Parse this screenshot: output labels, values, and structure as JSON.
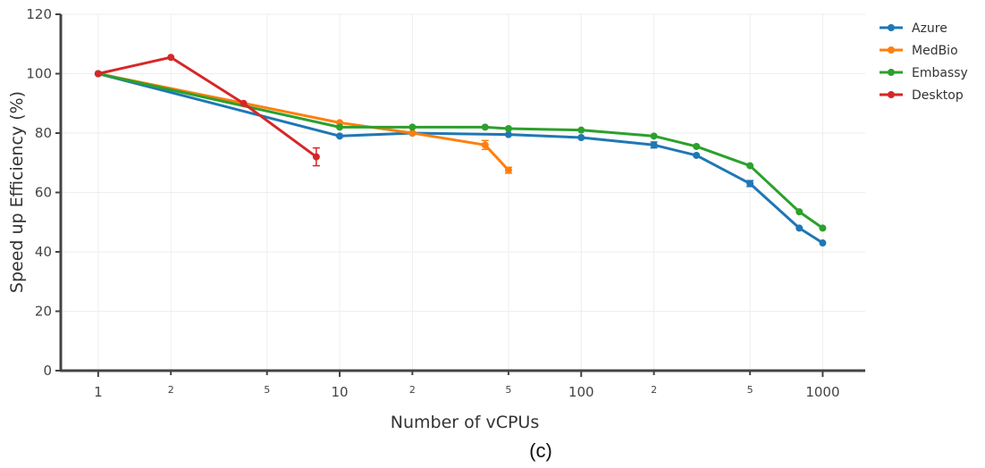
{
  "chart_data": {
    "type": "line",
    "title": "",
    "xlabel": "Number of vCPUs",
    "ylabel": "Speed up Efficiency (%)",
    "caption": "(c)",
    "x_scale": "log",
    "xlim": [
      0.7,
      1500
    ],
    "ylim": [
      0,
      120
    ],
    "y_ticks": [
      0,
      20,
      40,
      60,
      80,
      100,
      120
    ],
    "x_ticks_major": [
      {
        "value": 1,
        "label": "1"
      },
      {
        "value": 10,
        "label": "10"
      },
      {
        "value": 100,
        "label": "100"
      },
      {
        "value": 1000,
        "label": "1000"
      }
    ],
    "x_ticks_minor": [
      {
        "value": 2,
        "label": "2"
      },
      {
        "value": 5,
        "label": "5"
      },
      {
        "value": 20,
        "label": "2"
      },
      {
        "value": 50,
        "label": "5"
      },
      {
        "value": 200,
        "label": "2"
      },
      {
        "value": 500,
        "label": "5"
      }
    ],
    "grid": true,
    "legend_position": "top-right",
    "series": [
      {
        "name": "Azure",
        "color": "#1f77b4",
        "points": [
          {
            "x": 1,
            "y": 100
          },
          {
            "x": 10,
            "y": 79
          },
          {
            "x": 20,
            "y": 80
          },
          {
            "x": 50,
            "y": 79.5
          },
          {
            "x": 100,
            "y": 78.5
          },
          {
            "x": 200,
            "y": 76,
            "err": 1
          },
          {
            "x": 300,
            "y": 72.5
          },
          {
            "x": 500,
            "y": 63,
            "err": 1
          },
          {
            "x": 800,
            "y": 48
          },
          {
            "x": 1000,
            "y": 43
          }
        ]
      },
      {
        "name": "MedBio",
        "color": "#ff7f0e",
        "points": [
          {
            "x": 1,
            "y": 100
          },
          {
            "x": 10,
            "y": 83.5
          },
          {
            "x": 20,
            "y": 80
          },
          {
            "x": 40,
            "y": 76,
            "err": 1.5
          },
          {
            "x": 50,
            "y": 67.5,
            "err": 1
          }
        ]
      },
      {
        "name": "Embassy",
        "color": "#2ca02c",
        "points": [
          {
            "x": 1,
            "y": 100
          },
          {
            "x": 10,
            "y": 82
          },
          {
            "x": 20,
            "y": 82
          },
          {
            "x": 40,
            "y": 82
          },
          {
            "x": 50,
            "y": 81.5
          },
          {
            "x": 100,
            "y": 81
          },
          {
            "x": 200,
            "y": 79
          },
          {
            "x": 300,
            "y": 75.5
          },
          {
            "x": 500,
            "y": 69
          },
          {
            "x": 800,
            "y": 53.5
          },
          {
            "x": 1000,
            "y": 48
          }
        ]
      },
      {
        "name": "Desktop",
        "color": "#d62728",
        "points": [
          {
            "x": 1,
            "y": 100
          },
          {
            "x": 2,
            "y": 105.5
          },
          {
            "x": 4,
            "y": 90
          },
          {
            "x": 8,
            "y": 72,
            "err": 3
          }
        ]
      }
    ]
  }
}
